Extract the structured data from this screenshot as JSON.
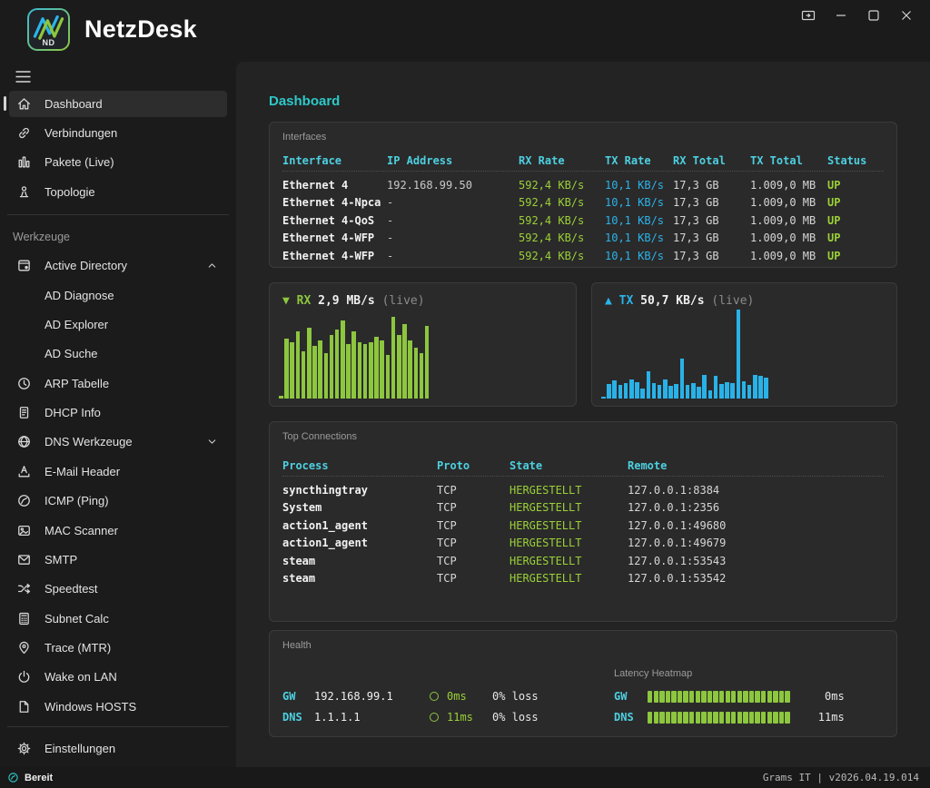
{
  "titlebar": {
    "app_name": "NetzDesk",
    "logo_text": "ND",
    "controls": [
      {
        "icon": "screen-share-icon"
      },
      {
        "icon": "minimize-icon"
      },
      {
        "icon": "maximize-icon"
      },
      {
        "icon": "close-icon"
      }
    ]
  },
  "sidebar": {
    "items": [
      {
        "type": "item",
        "label": "Dashboard",
        "icon": "home-icon",
        "selected": true
      },
      {
        "type": "item",
        "label": "Verbindungen",
        "icon": "link-icon"
      },
      {
        "type": "item",
        "label": "Pakete (Live)",
        "icon": "bars-icon"
      },
      {
        "type": "item",
        "label": "Topologie",
        "icon": "topology-icon"
      },
      {
        "type": "divider"
      },
      {
        "type": "section",
        "label": "Werkzeuge"
      },
      {
        "type": "item",
        "label": "Active Directory",
        "icon": "directory-icon",
        "chevron": "up"
      },
      {
        "type": "item",
        "label": "AD Diagnose",
        "sub": true
      },
      {
        "type": "item",
        "label": "AD Explorer",
        "sub": true
      },
      {
        "type": "item",
        "label": "AD Suche",
        "sub": true
      },
      {
        "type": "item",
        "label": "ARP Tabelle",
        "icon": "history-icon"
      },
      {
        "type": "item",
        "label": "DHCP Info",
        "icon": "document-icon"
      },
      {
        "type": "item",
        "label": "DNS Werkzeuge",
        "icon": "globe-icon",
        "chevron": "down"
      },
      {
        "type": "item",
        "label": "E-Mail Header",
        "icon": "mail-header-icon"
      },
      {
        "type": "item",
        "label": "ICMP (Ping)",
        "icon": "ping-icon"
      },
      {
        "type": "item",
        "label": "MAC Scanner",
        "icon": "scanner-icon"
      },
      {
        "type": "item",
        "label": "SMTP",
        "icon": "envelope-icon"
      },
      {
        "type": "item",
        "label": "Speedtest",
        "icon": "shuffle-icon"
      },
      {
        "type": "item",
        "label": "Subnet Calc",
        "icon": "calculator-icon"
      },
      {
        "type": "item",
        "label": "Trace (MTR)",
        "icon": "pin-icon"
      },
      {
        "type": "item",
        "label": "Wake on LAN",
        "icon": "power-icon"
      },
      {
        "type": "item",
        "label": "Windows HOSTS",
        "icon": "file-icon"
      },
      {
        "type": "divider",
        "push": true
      },
      {
        "type": "item",
        "label": "Einstellungen",
        "icon": "gear-icon"
      }
    ]
  },
  "main": {
    "page_title": "Dashboard",
    "interfaces": {
      "card_label": "Interfaces",
      "columns": [
        "Interface",
        "IP Address",
        "RX Rate",
        "TX Rate",
        "RX Total",
        "TX Total",
        "Status"
      ],
      "rows": [
        [
          "Ethernet 4",
          "192.168.99.50",
          "592,4 KB/s",
          "10,1 KB/s",
          "17,3 GB",
          "1.009,0 MB",
          "UP"
        ],
        [
          "Ethernet 4-Npca",
          "-",
          "592,4 KB/s",
          "10,1 KB/s",
          "17,3 GB",
          "1.009,0 MB",
          "UP"
        ],
        [
          "Ethernet 4-QoS",
          "-",
          "592,4 KB/s",
          "10,1 KB/s",
          "17,3 GB",
          "1.009,0 MB",
          "UP"
        ],
        [
          "Ethernet 4-WFP",
          "-",
          "592,4 KB/s",
          "10,1 KB/s",
          "17,3 GB",
          "1.009,0 MB",
          "UP"
        ],
        [
          "Ethernet 4-WFP",
          "-",
          "592,4 KB/s",
          "10,1 KB/s",
          "17,3 GB",
          "1.009,0 MB",
          "UP"
        ]
      ]
    },
    "connections": {
      "card_label": "Top Connections",
      "columns": [
        "Process",
        "Proto",
        "State",
        "Remote"
      ],
      "rows": [
        [
          "syncthingtray",
          "TCP",
          "HERGESTELLT",
          "127.0.0.1:8384"
        ],
        [
          "System",
          "TCP",
          "HERGESTELLT",
          "127.0.0.1:2356"
        ],
        [
          "action1_agent",
          "TCP",
          "HERGESTELLT",
          "127.0.0.1:49680"
        ],
        [
          "action1_agent",
          "TCP",
          "HERGESTELLT",
          "127.0.0.1:49679"
        ],
        [
          "steam",
          "TCP",
          "HERGESTELLT",
          "127.0.0.1:53543"
        ],
        [
          "steam",
          "TCP",
          "HERGESTELLT",
          "127.0.0.1:53542"
        ]
      ]
    },
    "health": {
      "card_label": "Health",
      "targets": [
        {
          "name": "GW",
          "address": "192.168.99.1",
          "latency": "0ms",
          "loss": "0% loss"
        },
        {
          "name": "DNS",
          "address": "1.1.1.1",
          "latency": "11ms",
          "loss": "0% loss"
        }
      ],
      "heatmap": {
        "label": "Latency Heatmap",
        "rows": [
          {
            "name": "GW",
            "cells": 24,
            "value": "0ms"
          },
          {
            "name": "DNS",
            "cells": 24,
            "value": "11ms"
          }
        ]
      }
    }
  },
  "chart_data": [
    {
      "type": "bar",
      "title": "RX 2,9 MB/s (live)",
      "direction_arrow": "▼ ",
      "series_label": "RX",
      "current_value": " 2,9 MB/s ",
      "suffix": "(live)",
      "values": [
        3,
        66,
        62,
        74,
        52,
        78,
        58,
        64,
        50,
        70,
        76,
        86,
        60,
        74,
        62,
        60,
        62,
        68,
        64,
        48,
        90,
        70,
        82,
        64,
        56,
        50,
        80
      ],
      "ylim": [
        0,
        100
      ],
      "color": "#8dc63f",
      "legend_position": "top-left",
      "grid": false
    },
    {
      "type": "bar",
      "title": "TX 50,7 KB/s (live)",
      "direction_arrow": "▲ ",
      "series_label": "TX",
      "current_value": " 50,7 KB/s ",
      "suffix": "(live)",
      "values": [
        2,
        16,
        20,
        15,
        17,
        21,
        18,
        11,
        30,
        17,
        15,
        21,
        14,
        16,
        44,
        15,
        17,
        13,
        26,
        9,
        25,
        16,
        18,
        17,
        98,
        19,
        15,
        26,
        25,
        23
      ],
      "ylim": [
        0,
        100
      ],
      "color": "#29b2e8",
      "legend_position": "top-left",
      "grid": false
    }
  ],
  "statusbar": {
    "left_text": "Bereit",
    "right_text": "Grams IT | v2026.04.19.014"
  },
  "colors": {
    "accent_teal": "#2ec8c8",
    "table_header_cyan": "#4dd0e1",
    "green": "#8dc63f",
    "blue": "#29b2e8",
    "card_bg": "#2a2a2a",
    "panel_bg": "#232323",
    "frame_bg": "#1b1b1b"
  }
}
